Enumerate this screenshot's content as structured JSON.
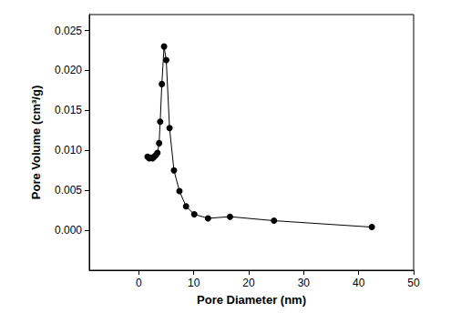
{
  "chart_data": {
    "type": "line",
    "x_label": "Pore Diameter (nm)",
    "y_label": "Pore Volume (cm³/g)",
    "x": [
      1.6,
      1.9,
      2.2,
      2.5,
      2.8,
      3.1,
      3.4,
      3.7,
      3.9,
      4.2,
      4.6,
      5.0,
      5.6,
      6.4,
      7.4,
      8.6,
      10.1,
      12.6,
      16.6,
      24.6,
      42.4
    ],
    "values": [
      0.0092,
      0.009,
      0.0091,
      0.009,
      0.0092,
      0.0094,
      0.0097,
      0.0109,
      0.0136,
      0.0183,
      0.023,
      0.0213,
      0.0128,
      0.0075,
      0.0049,
      0.003,
      0.002,
      0.0015,
      0.0017,
      0.0012,
      0.0004
    ],
    "color": "#000000",
    "marker": "circle",
    "line_style": "solid",
    "xlim": [
      -9,
      50
    ],
    "xticks": [
      0,
      10,
      20,
      30,
      40,
      50
    ],
    "ylim": [
      -0.005,
      0.027
    ],
    "yticks": [
      {
        "value": 0,
        "label": "0.000"
      },
      {
        "value": 0.005,
        "label": "0.005"
      },
      {
        "value": 0.01,
        "label": "0.010"
      },
      {
        "value": 0.015,
        "label": "0.015"
      },
      {
        "value": 0.02,
        "label": "0.020"
      },
      {
        "value": 0.025,
        "label": "0.025"
      }
    ],
    "grid": false
  }
}
